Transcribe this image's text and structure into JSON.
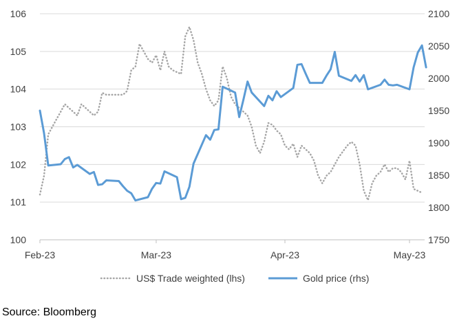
{
  "chart_data": {
    "type": "line",
    "x_axis": {
      "ticks": [
        "Feb-23",
        "Mar-23",
        "Apr-23",
        "May-23"
      ],
      "tick_dates": [
        "2023-02-01",
        "2023-03-01",
        "2023-04-01",
        "2023-05-01"
      ],
      "range": [
        "2023-02-01",
        "2023-05-04"
      ]
    },
    "y_left": {
      "min": 100,
      "max": 106,
      "ticks": [
        "100",
        "101",
        "102",
        "103",
        "104",
        "105",
        "106"
      ]
    },
    "y_right": {
      "min": 1750,
      "max": 2100,
      "ticks": [
        "1750",
        "1800",
        "1850",
        "1900",
        "1950",
        "2000",
        "2050",
        "2100"
      ]
    },
    "grid": "horizontal",
    "legend_position": "bottom",
    "series": [
      {
        "name": "US$ Trade weighted (lhs)",
        "axis": "left",
        "color": "#a6a6a6",
        "style": "dotted",
        "points": [
          [
            "2023-02-01",
            101.2
          ],
          [
            "2023-02-02",
            101.7
          ],
          [
            "2023-02-03",
            102.8
          ],
          [
            "2023-02-04",
            103.0
          ],
          [
            "2023-02-05",
            103.2
          ],
          [
            "2023-02-06",
            103.4
          ],
          [
            "2023-02-07",
            103.6
          ],
          [
            "2023-02-08",
            103.5
          ],
          [
            "2023-02-09",
            103.4
          ],
          [
            "2023-02-10",
            103.3
          ],
          [
            "2023-02-11",
            103.6
          ],
          [
            "2023-02-12",
            103.5
          ],
          [
            "2023-02-13",
            103.4
          ],
          [
            "2023-02-14",
            103.3
          ],
          [
            "2023-02-15",
            103.4
          ],
          [
            "2023-02-16",
            103.9
          ],
          [
            "2023-02-17",
            103.85
          ],
          [
            "2023-02-18",
            103.85
          ],
          [
            "2023-02-19",
            103.85
          ],
          [
            "2023-02-20",
            103.85
          ],
          [
            "2023-02-21",
            103.85
          ],
          [
            "2023-02-22",
            103.95
          ],
          [
            "2023-02-23",
            104.5
          ],
          [
            "2023-02-24",
            104.6
          ],
          [
            "2023-02-25",
            105.2
          ],
          [
            "2023-02-26",
            105.0
          ],
          [
            "2023-02-27",
            104.8
          ],
          [
            "2023-02-28",
            104.7
          ],
          [
            "2023-03-01",
            104.9
          ],
          [
            "2023-03-02",
            104.5
          ],
          [
            "2023-03-03",
            105.0
          ],
          [
            "2023-03-04",
            104.6
          ],
          [
            "2023-03-05",
            104.5
          ],
          [
            "2023-03-06",
            104.45
          ],
          [
            "2023-03-07",
            104.4
          ],
          [
            "2023-03-08",
            105.4
          ],
          [
            "2023-03-09",
            105.65
          ],
          [
            "2023-03-10",
            105.3
          ],
          [
            "2023-03-11",
            104.7
          ],
          [
            "2023-03-12",
            104.4
          ],
          [
            "2023-03-13",
            104.0
          ],
          [
            "2023-03-14",
            103.7
          ],
          [
            "2023-03-15",
            103.55
          ],
          [
            "2023-03-16",
            103.7
          ],
          [
            "2023-03-17",
            104.6
          ],
          [
            "2023-03-18",
            104.3
          ],
          [
            "2023-03-19",
            103.8
          ],
          [
            "2023-03-20",
            103.6
          ],
          [
            "2023-03-21",
            103.5
          ],
          [
            "2023-03-22",
            103.4
          ],
          [
            "2023-03-23",
            103.3
          ],
          [
            "2023-03-24",
            103.0
          ],
          [
            "2023-03-25",
            102.5
          ],
          [
            "2023-03-26",
            102.3
          ],
          [
            "2023-03-27",
            102.6
          ],
          [
            "2023-03-28",
            103.1
          ],
          [
            "2023-03-29",
            103.05
          ],
          [
            "2023-03-30",
            102.9
          ],
          [
            "2023-03-31",
            102.8
          ],
          [
            "2023-04-01",
            102.5
          ],
          [
            "2023-04-02",
            102.4
          ],
          [
            "2023-04-03",
            102.55
          ],
          [
            "2023-04-04",
            102.2
          ],
          [
            "2023-04-05",
            102.5
          ],
          [
            "2023-04-06",
            102.4
          ],
          [
            "2023-04-07",
            102.3
          ],
          [
            "2023-04-08",
            102.1
          ],
          [
            "2023-04-09",
            101.7
          ],
          [
            "2023-04-10",
            101.5
          ],
          [
            "2023-04-11",
            101.7
          ],
          [
            "2023-04-12",
            101.8
          ],
          [
            "2023-04-13",
            102.0
          ],
          [
            "2023-04-14",
            102.2
          ],
          [
            "2023-04-15",
            102.35
          ],
          [
            "2023-04-16",
            102.5
          ],
          [
            "2023-04-17",
            102.6
          ],
          [
            "2023-04-18",
            102.5
          ],
          [
            "2023-04-19",
            102.0
          ],
          [
            "2023-04-20",
            101.3
          ],
          [
            "2023-04-21",
            101.05
          ],
          [
            "2023-04-22",
            101.5
          ],
          [
            "2023-04-23",
            101.7
          ],
          [
            "2023-04-24",
            101.8
          ],
          [
            "2023-04-25",
            102.0
          ],
          [
            "2023-04-26",
            101.8
          ],
          [
            "2023-04-27",
            101.9
          ],
          [
            "2023-04-28",
            101.9
          ],
          [
            "2023-04-29",
            101.8
          ],
          [
            "2023-04-30",
            101.6
          ],
          [
            "2023-05-01",
            102.1
          ],
          [
            "2023-05-02",
            101.35
          ],
          [
            "2023-05-03",
            101.3
          ],
          [
            "2023-05-04",
            101.25
          ]
        ]
      },
      {
        "name": "Gold price (rhs)",
        "axis": "right",
        "color": "#5b9bd5",
        "style": "solid",
        "points": [
          [
            "2023-02-01",
            1950
          ],
          [
            "2023-02-02",
            1915
          ],
          [
            "2023-02-03",
            1865
          ],
          [
            "2023-02-06",
            1867
          ],
          [
            "2023-02-07",
            1875
          ],
          [
            "2023-02-08",
            1878
          ],
          [
            "2023-02-09",
            1862
          ],
          [
            "2023-02-10",
            1866
          ],
          [
            "2023-02-13",
            1852
          ],
          [
            "2023-02-14",
            1855
          ],
          [
            "2023-02-15",
            1835
          ],
          [
            "2023-02-16",
            1836
          ],
          [
            "2023-02-17",
            1842
          ],
          [
            "2023-02-20",
            1841
          ],
          [
            "2023-02-21",
            1833
          ],
          [
            "2023-02-22",
            1826
          ],
          [
            "2023-02-23",
            1822
          ],
          [
            "2023-02-24",
            1811
          ],
          [
            "2023-02-27",
            1816
          ],
          [
            "2023-02-28",
            1829
          ],
          [
            "2023-03-01",
            1838
          ],
          [
            "2023-03-02",
            1837
          ],
          [
            "2023-03-03",
            1856
          ],
          [
            "2023-03-06",
            1847
          ],
          [
            "2023-03-07",
            1813
          ],
          [
            "2023-03-08",
            1815
          ],
          [
            "2023-03-09",
            1832
          ],
          [
            "2023-03-10",
            1868
          ],
          [
            "2023-03-13",
            1912
          ],
          [
            "2023-03-14",
            1905
          ],
          [
            "2023-03-15",
            1920
          ],
          [
            "2023-03-16",
            1921
          ],
          [
            "2023-03-17",
            1987
          ],
          [
            "2023-03-20",
            1978
          ],
          [
            "2023-03-21",
            1940
          ],
          [
            "2023-03-22",
            1967
          ],
          [
            "2023-03-23",
            1995
          ],
          [
            "2023-03-24",
            1978
          ],
          [
            "2023-03-27",
            1957
          ],
          [
            "2023-03-28",
            1973
          ],
          [
            "2023-03-29",
            1966
          ],
          [
            "2023-03-30",
            1980
          ],
          [
            "2023-03-31",
            1971
          ],
          [
            "2023-04-03",
            1985
          ],
          [
            "2023-04-04",
            2021
          ],
          [
            "2023-04-05",
            2022
          ],
          [
            "2023-04-06",
            2007
          ],
          [
            "2023-04-07",
            1993
          ],
          [
            "2023-04-10",
            1993
          ],
          [
            "2023-04-11",
            2004
          ],
          [
            "2023-04-12",
            2014
          ],
          [
            "2023-04-13",
            2041
          ],
          [
            "2023-04-14",
            2004
          ],
          [
            "2023-04-17",
            1996
          ],
          [
            "2023-04-18",
            2005
          ],
          [
            "2023-04-19",
            1995
          ],
          [
            "2023-04-20",
            2005
          ],
          [
            "2023-04-21",
            1983
          ],
          [
            "2023-04-24",
            1990
          ],
          [
            "2023-04-25",
            1998
          ],
          [
            "2023-04-26",
            1990
          ],
          [
            "2023-04-27",
            1989
          ],
          [
            "2023-04-28",
            1990
          ],
          [
            "2023-05-01",
            1983
          ],
          [
            "2023-05-02",
            2017
          ],
          [
            "2023-05-03",
            2040
          ],
          [
            "2023-05-04",
            2051
          ],
          [
            "2023-05-05",
            2017
          ]
        ]
      }
    ]
  },
  "source": "Source: Bloomberg"
}
